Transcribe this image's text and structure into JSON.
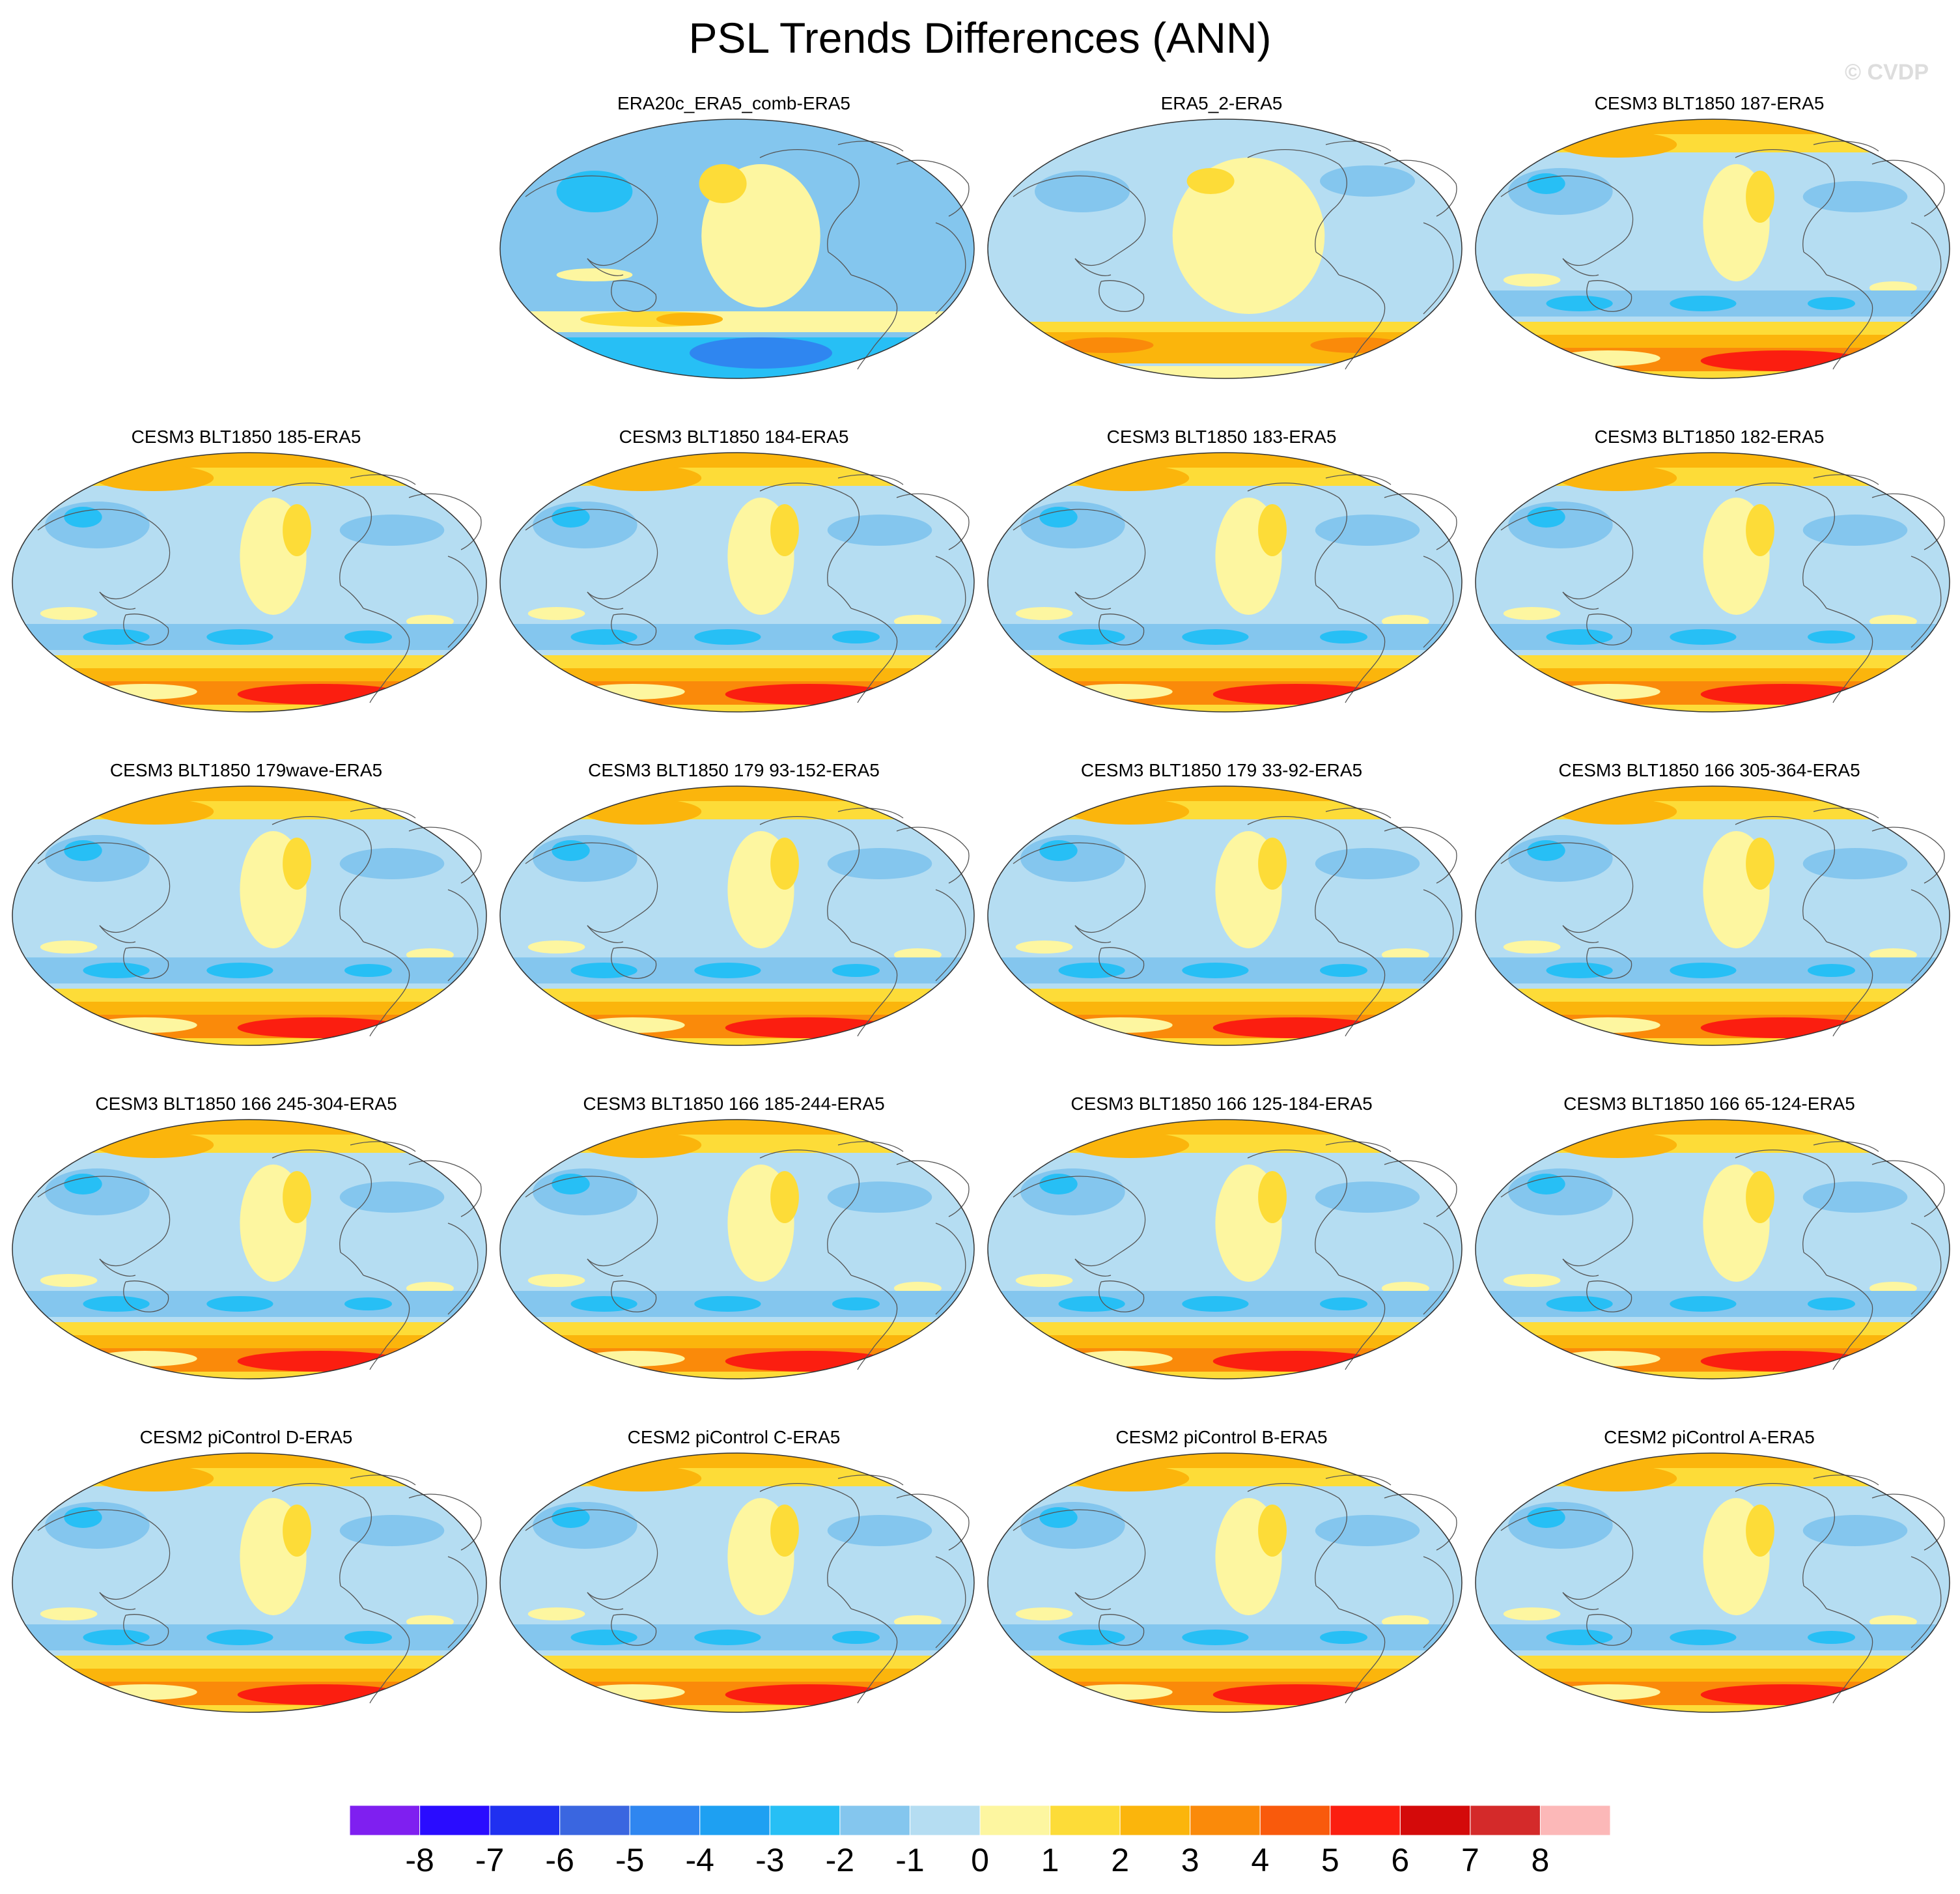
{
  "title": "PSL Trends Differences (ANN)",
  "watermark": "© CVDP",
  "panels": [
    {
      "title": "",
      "empty": true
    },
    {
      "title": "ERA20c_ERA5_comb-ERA5",
      "variant": "era20c"
    },
    {
      "title": "ERA5_2-ERA5",
      "variant": "era5"
    },
    {
      "title": "CESM3 BLT1850 187-ERA5",
      "variant": "model"
    },
    {
      "title": "CESM3 BLT1850 185-ERA5",
      "variant": "model"
    },
    {
      "title": "CESM3 BLT1850 184-ERA5",
      "variant": "model"
    },
    {
      "title": "CESM3 BLT1850 183-ERA5",
      "variant": "model"
    },
    {
      "title": "CESM3 BLT1850 182-ERA5",
      "variant": "model"
    },
    {
      "title": "CESM3 BLT1850 179wave-ERA5",
      "variant": "model"
    },
    {
      "title": "CESM3 BLT1850 179 93-152-ERA5",
      "variant": "model"
    },
    {
      "title": "CESM3 BLT1850 179 33-92-ERA5",
      "variant": "model"
    },
    {
      "title": "CESM3 BLT1850 166 305-364-ERA5",
      "variant": "model"
    },
    {
      "title": "CESM3 BLT1850 166 245-304-ERA5",
      "variant": "model"
    },
    {
      "title": "CESM3 BLT1850 166 185-244-ERA5",
      "variant": "model"
    },
    {
      "title": "CESM3 BLT1850 166 125-184-ERA5",
      "variant": "model"
    },
    {
      "title": "CESM3 BLT1850 166 65-124-ERA5",
      "variant": "model"
    },
    {
      "title": "CESM2 piControl D-ERA5",
      "variant": "model"
    },
    {
      "title": "CESM2 piControl C-ERA5",
      "variant": "model"
    },
    {
      "title": "CESM2 piControl B-ERA5",
      "variant": "model"
    },
    {
      "title": "CESM2 piControl A-ERA5",
      "variant": "model"
    }
  ],
  "colorbar": {
    "labels": [
      "-8",
      "-7",
      "-6",
      "-5",
      "-4",
      "-3",
      "-2",
      "-1",
      "0",
      "1",
      "2",
      "3",
      "4",
      "5",
      "6",
      "7",
      "8"
    ],
    "colors": [
      "#7f1ff0",
      "#2a0cff",
      "#2030f0",
      "#3a66e0",
      "#2f86f0",
      "#1ea0f2",
      "#27bff5",
      "#84c6ee",
      "#b5ddf2",
      "#fdf6a0",
      "#fddc38",
      "#fbb50c",
      "#fa8a0a",
      "#f95a0c",
      "#fb1e10",
      "#d40a0a",
      "#d42a2a",
      "#fcb8b8"
    ]
  },
  "palette": {
    "ocean_light_blue": "#b5ddf2",
    "mid_blue": "#84c6ee",
    "deep_blue": "#27bff5",
    "yellow": "#fdf6a0",
    "gold": "#fddc38",
    "orange": "#fbb50c",
    "dark_orange": "#fa8a0a",
    "red": "#fb1e10",
    "dark_red": "#d40a0a",
    "coastline": "#555555"
  }
}
